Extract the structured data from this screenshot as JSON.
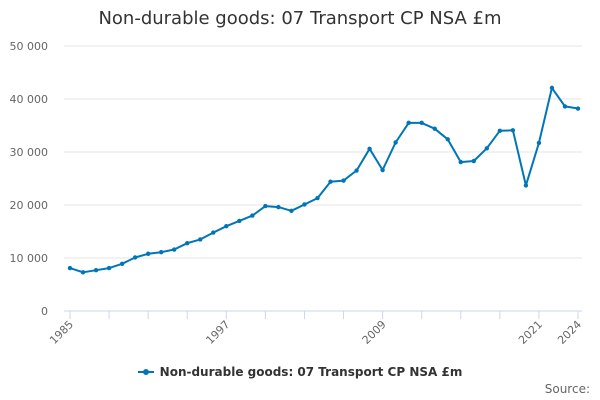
{
  "chart_data": {
    "type": "line",
    "title": "Non-durable goods: 07 Transport CP NSA £m",
    "xlabel": "",
    "ylabel": "",
    "ylim": [
      0,
      50000
    ],
    "xlim": [
      1985,
      2024
    ],
    "yticks": [
      0,
      10000,
      20000,
      30000,
      40000,
      50000
    ],
    "ytick_labels": [
      "0",
      "10 000",
      "20 000",
      "30 000",
      "40 000",
      "50 000"
    ],
    "xticks": [
      1985,
      1997,
      2009,
      2021,
      2024
    ],
    "xtick_labels": [
      "1985",
      "1997",
      "2009",
      "2021",
      "2024"
    ],
    "grid": true,
    "legend_position": "bottom",
    "series": [
      {
        "name": "Non-durable goods: 07 Transport CP NSA £m",
        "color": "#0075b7",
        "x": [
          1985,
          1986,
          1987,
          1988,
          1989,
          1990,
          1991,
          1992,
          1993,
          1994,
          1995,
          1996,
          1997,
          1998,
          1999,
          2000,
          2001,
          2002,
          2003,
          2004,
          2005,
          2006,
          2007,
          2008,
          2009,
          2010,
          2011,
          2012,
          2013,
          2014,
          2015,
          2016,
          2017,
          2018,
          2019,
          2020,
          2021,
          2022,
          2023,
          2024
        ],
        "values": [
          8100,
          7300,
          7700,
          8100,
          8900,
          10100,
          10800,
          11100,
          11600,
          12800,
          13500,
          14800,
          16000,
          17000,
          18000,
          19800,
          19600,
          18900,
          20100,
          21300,
          24400,
          24600,
          26500,
          30600,
          26600,
          31800,
          35500,
          35500,
          34400,
          32400,
          28100,
          28300,
          30700,
          34000,
          34100,
          23700,
          31700,
          42100,
          38600,
          38200
        ]
      }
    ],
    "credits": "Source:"
  }
}
